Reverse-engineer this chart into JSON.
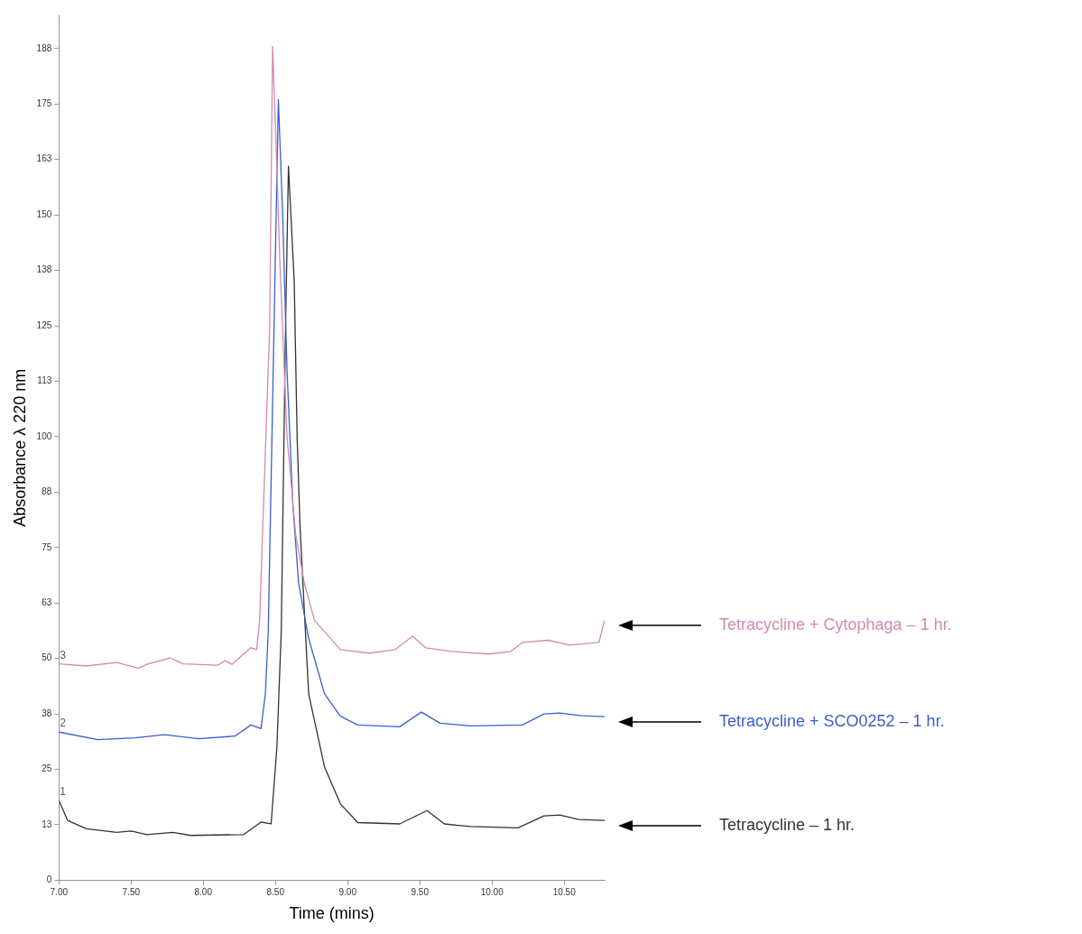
{
  "chart_data": {
    "type": "line",
    "xlabel": "Time (mins)",
    "ylabel": "Absorbance λ 220 nm",
    "xlim": [
      7,
      10.78
    ],
    "ylim": [
      0,
      195
    ],
    "xticks": [
      {
        "value": 7,
        "label": "7.00"
      },
      {
        "value": 7.5,
        "label": "7.50"
      },
      {
        "value": 8,
        "label": "8.00"
      },
      {
        "value": 8.5,
        "label": "8.50"
      },
      {
        "value": 9,
        "label": "9.00"
      },
      {
        "value": 9.5,
        "label": "9.50"
      },
      {
        "value": 10,
        "label": "10.00"
      },
      {
        "value": 10.5,
        "label": "10.50"
      }
    ],
    "yticks": [
      0,
      {
        "value": 12.5,
        "label": "13"
      },
      25,
      {
        "value": 37.5,
        "label": "38"
      },
      50,
      {
        "value": 62.5,
        "label": "63"
      },
      75,
      {
        "value": 87.5,
        "label": "88"
      },
      100,
      {
        "value": 112.5,
        "label": "113"
      },
      125,
      {
        "value": 137.5,
        "label": "138"
      },
      150,
      {
        "value": 162.5,
        "label": "163"
      },
      175,
      {
        "value": 187.5,
        "label": "188"
      }
    ],
    "legend": false,
    "marker": "none",
    "line_style": "solid",
    "annotations": [
      "3",
      "2",
      "1"
    ],
    "series": [
      {
        "name": "Tetracycline + Cytophaga – 1 hr.",
        "color": "#d48ab0",
        "x": [
          7,
          7.19,
          7.4,
          7.55,
          7.61,
          7.77,
          7.86,
          8.1,
          8.15,
          8.2,
          8.33,
          8.37,
          8.39,
          8.46,
          8.48,
          8.5,
          8.53,
          8.58,
          8.64,
          8.7,
          8.77,
          8.95,
          9.15,
          9.33,
          9.45,
          9.54,
          9.72,
          9.98,
          10.13,
          10.21,
          10.39,
          10.54,
          10.74,
          10.78
        ],
        "values": [
          48.8,
          48.3,
          49.1,
          47.8,
          48.7,
          50.1,
          48.8,
          48.5,
          49.5,
          48.7,
          52.4,
          52,
          58.6,
          125,
          188,
          170,
          140,
          100,
          78,
          67,
          58.6,
          52,
          51.2,
          52,
          55,
          52.4,
          51.6,
          51,
          51.6,
          53.6,
          54.1,
          53,
          53.6,
          58.6
        ]
      },
      {
        "name": "Tetracycline + SCO0252 – 1 hr.",
        "color": "#3a5fcd",
        "x": [
          7,
          7.27,
          7.53,
          7.73,
          7.97,
          8.22,
          8.33,
          8.4,
          8.43,
          8.45,
          8.52,
          8.55,
          8.58,
          8.62,
          8.66,
          8.73,
          8.84,
          8.95,
          9.07,
          9.36,
          9.51,
          9.64,
          9.85,
          10.21,
          10.36,
          10.47,
          10.62,
          10.78
        ],
        "values": [
          33.4,
          31.7,
          32.1,
          32.8,
          31.9,
          32.5,
          35,
          34.2,
          42,
          56,
          176,
          150,
          115,
          85,
          67,
          54.5,
          42,
          37,
          35,
          34.6,
          37.9,
          35.4,
          34.8,
          35,
          37.5,
          37.7,
          37.1,
          36.9
        ]
      },
      {
        "name": "Tetracycline – 1 hr.",
        "color": "#333333",
        "x": [
          7,
          7.06,
          7.19,
          7.4,
          7.5,
          7.61,
          7.79,
          7.91,
          8.28,
          8.4,
          8.47,
          8.51,
          8.54,
          8.57,
          8.59,
          8.63,
          8.65,
          8.67,
          8.69,
          8.73,
          8.84,
          8.95,
          9.07,
          9.36,
          9.55,
          9.67,
          9.85,
          10.18,
          10.36,
          10.47,
          10.6,
          10.78
        ],
        "values": [
          18,
          13.5,
          11.6,
          10.8,
          11.1,
          10.3,
          10.8,
          10.1,
          10.3,
          13.1,
          12.7,
          30,
          56,
          125,
          161,
          135,
          100,
          80,
          67,
          42,
          25.5,
          17.2,
          13,
          12.7,
          15.7,
          12.7,
          12.1,
          11.8,
          14.5,
          14.7,
          13.7,
          13.5
        ]
      }
    ]
  }
}
